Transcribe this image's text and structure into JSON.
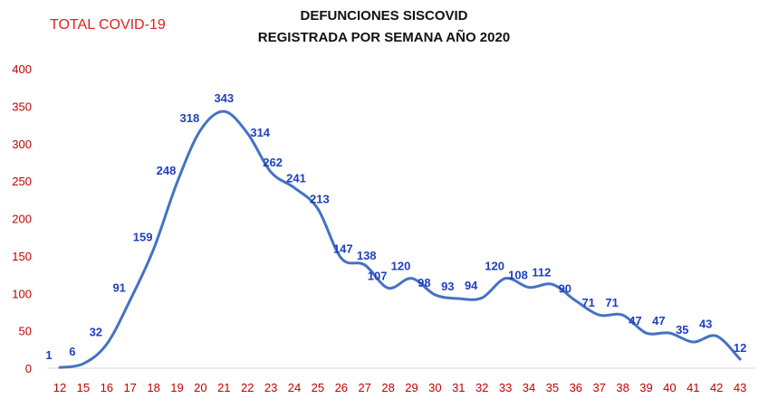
{
  "header": {
    "tag": "TOTAL  COVID-19",
    "title_line1": "DEFUNCIONES SISCOVID",
    "title_line2": "REGISTRADA  POR SEMANA AÑO 2020"
  },
  "chart_data": {
    "type": "line",
    "title": "DEFUNCIONES SISCOVID REGISTRADA  POR SEMANA AÑO 2020",
    "xlabel": "",
    "ylabel": "",
    "categories": [
      "12",
      "15",
      "16",
      "17",
      "18",
      "19",
      "20",
      "21",
      "22",
      "23",
      "24",
      "25",
      "26",
      "27",
      "28",
      "29",
      "30",
      "31",
      "32",
      "33",
      "34",
      "35",
      "36",
      "37",
      "38",
      "39",
      "40",
      "41",
      "42",
      "43"
    ],
    "values": [
      1,
      6,
      32,
      91,
      159,
      248,
      318,
      343,
      314,
      262,
      241,
      213,
      147,
      138,
      107,
      120,
      98,
      93,
      94,
      120,
      108,
      112,
      90,
      71,
      71,
      47,
      47,
      35,
      43,
      12
    ],
    "ylim": [
      0,
      400
    ],
    "yticks": [
      0,
      50,
      100,
      150,
      200,
      250,
      300,
      350,
      400
    ],
    "grid": false,
    "legend": "none",
    "colors": {
      "line": "#4472c4",
      "data_label": "#1f3fbf",
      "tick_label": "#c00000",
      "axis": "#d9d9d9"
    }
  }
}
